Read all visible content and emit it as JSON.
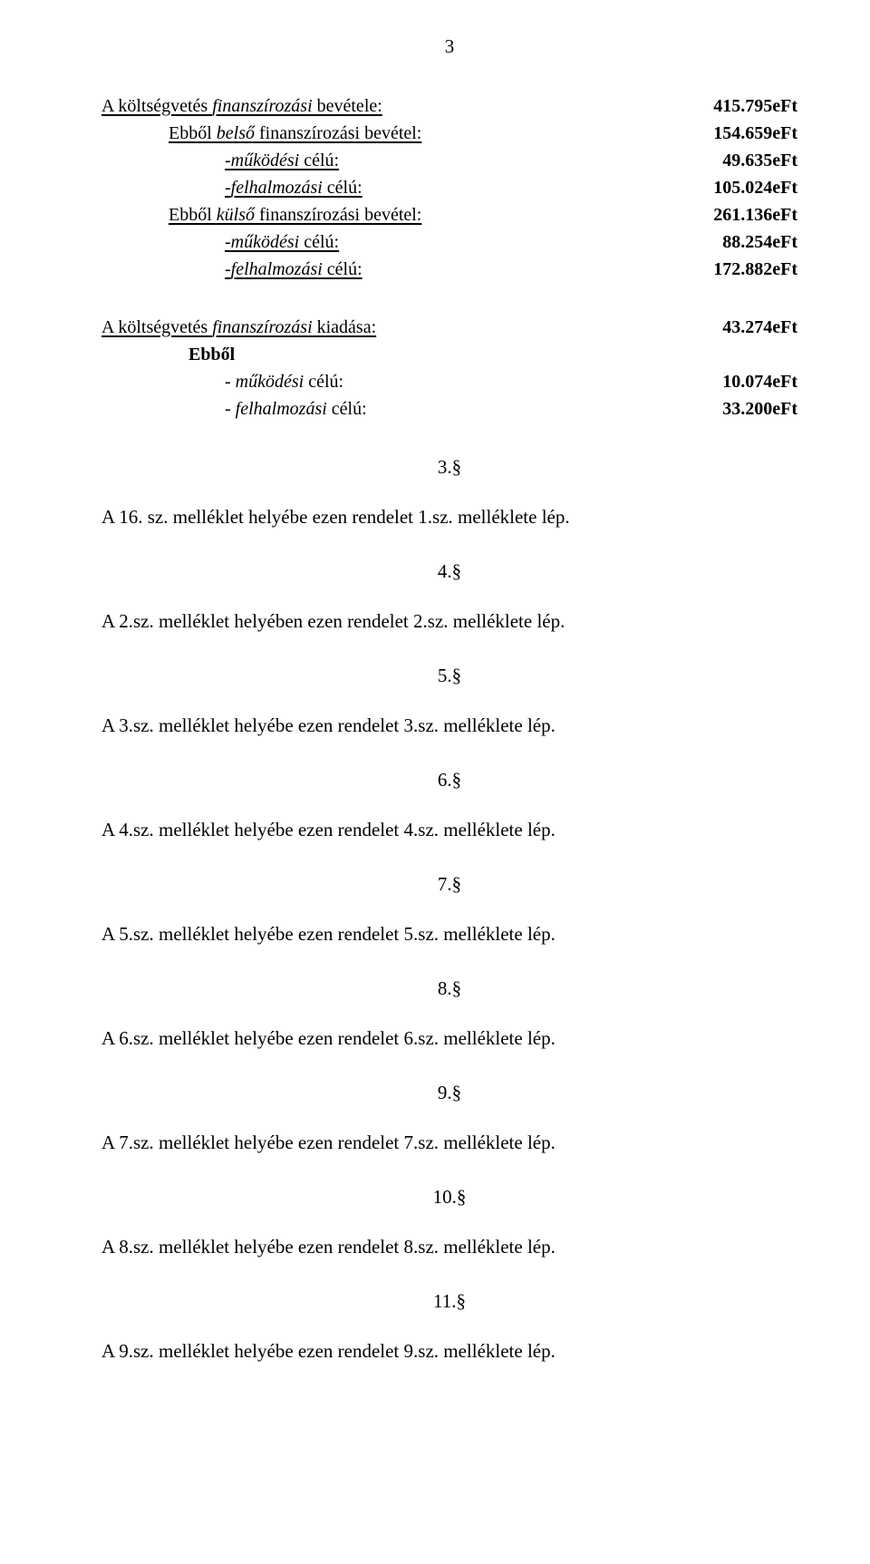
{
  "page_number": "3",
  "finance_revenue": {
    "title_prefix": "A költségvetés ",
    "title_italic": "finanszírozási",
    "title_suffix": " bevétele:",
    "title_amount": "415.795eFt",
    "lines": [
      {
        "prefix": "Ebből ",
        "italic": "belső",
        "suffix": " finanszírozási bevétel:",
        "amount": "154.659eFt"
      },
      {
        "prefix": "-",
        "italic": "működési",
        "suffix": " célú:",
        "indent": 2,
        "amount": "49.635eFt"
      },
      {
        "prefix": "-",
        "italic": "felhalmozási",
        "suffix": " célú:",
        "indent": 2,
        "amount": "105.024eFt"
      },
      {
        "prefix": "Ebből ",
        "italic": "külső",
        "suffix": " finanszírozási bevétel:",
        "amount": "261.136eFt"
      },
      {
        "prefix": "-",
        "italic": "működési",
        "suffix": " célú:",
        "indent": 2,
        "amount": "88.254eFt"
      },
      {
        "prefix": "-",
        "italic": "felhalmozási",
        "suffix": " célú:",
        "indent": 2,
        "amount": "172.882eFt"
      }
    ]
  },
  "finance_expense": {
    "title_prefix": "A költségvetés ",
    "title_italic": "finanszírozási",
    "title_suffix": " kiadása:",
    "title_amount": "43.274eFt",
    "sub_label": "Ebből",
    "lines": [
      {
        "prefix": "- ",
        "italic": "működési",
        "suffix": " célú:",
        "amount": "10.074eFt"
      },
      {
        "prefix": "- ",
        "italic": "felhalmozási",
        "suffix": " célú:",
        "amount": "33.200eFt"
      }
    ]
  },
  "sections": [
    {
      "num": "3.§",
      "text": "A 16. sz. melléklet helyébe ezen rendelet 1.sz. melléklete lép."
    },
    {
      "num": "4.§",
      "text": "A 2.sz. melléklet helyében ezen rendelet 2.sz. melléklete lép."
    },
    {
      "num": "5.§",
      "text": "A 3.sz. melléklet helyébe ezen rendelet 3.sz. melléklete lép."
    },
    {
      "num": "6.§",
      "text": "A 4.sz. melléklet helyébe ezen rendelet 4.sz. melléklete lép."
    },
    {
      "num": "7.§",
      "text": "A 5.sz. melléklet helyébe ezen rendelet 5.sz. melléklete lép."
    },
    {
      "num": "8.§",
      "text": "A 6.sz. melléklet helyébe ezen rendelet 6.sz. melléklete lép."
    },
    {
      "num": "9.§",
      "text": "A 7.sz. melléklet helyébe ezen rendelet 7.sz. melléklete lép."
    },
    {
      "num": "10.§",
      "text": "A 8.sz. melléklet helyébe ezen rendelet 8.sz. melléklete lép."
    },
    {
      "num": "11.§",
      "text": "A 9.sz. melléklet helyébe ezen rendelet 9.sz. melléklete lép."
    }
  ]
}
